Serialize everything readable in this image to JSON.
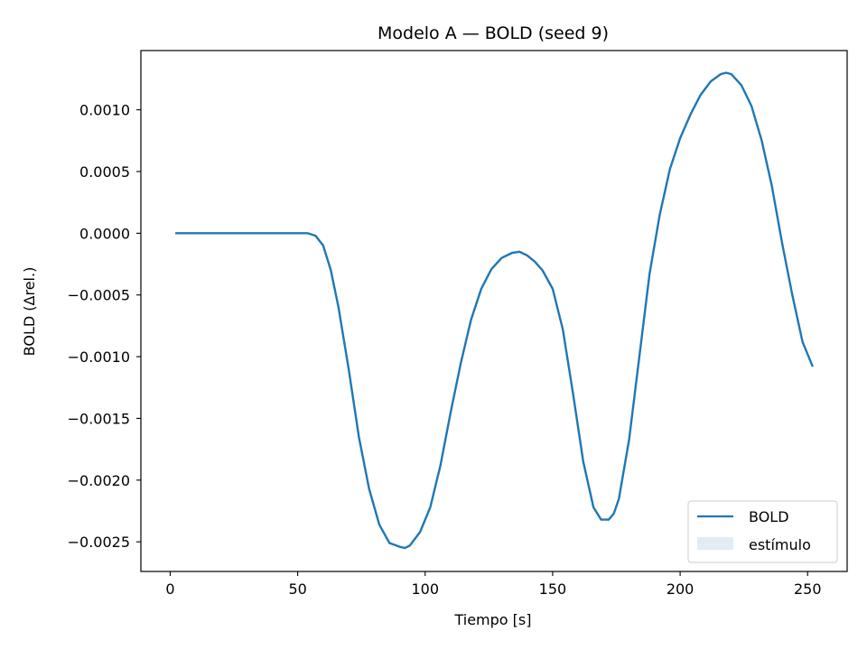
{
  "chart_data": {
    "type": "line",
    "title": "Modelo A — BOLD (seed 9)",
    "xlabel": "Tiempo [s]",
    "ylabel": "BOLD (Δrel.)",
    "xlim": [
      -11.5,
      265.5
    ],
    "ylim": [
      -0.00274,
      0.00148
    ],
    "xticks": [
      0,
      50,
      100,
      150,
      200,
      250
    ],
    "xtick_labels": [
      "0",
      "50",
      "100",
      "150",
      "200",
      "250"
    ],
    "yticks": [
      0.001,
      0.0005,
      0.0,
      -0.0005,
      -0.001,
      -0.0015,
      -0.002,
      -0.0025
    ],
    "ytick_labels": [
      "0.0010",
      "0.0005",
      "0.0000",
      "−0.0005",
      "−0.0010",
      "−0.0015",
      "−0.0020",
      "−0.0025"
    ],
    "grid": false,
    "legend_position": "lower-right",
    "series": [
      {
        "name": "BOLD",
        "color": "#1f77b4",
        "x": [
          2,
          10,
          20,
          30,
          40,
          50,
          54,
          57,
          60,
          63,
          66,
          70,
          74,
          78,
          82,
          86,
          90,
          92,
          94,
          98,
          102,
          106,
          110,
          114,
          118,
          122,
          126,
          130,
          134,
          137,
          140,
          143,
          146,
          150,
          154,
          158,
          162,
          166,
          169,
          172,
          174,
          176,
          180,
          184,
          188,
          192,
          196,
          200,
          204,
          208,
          212,
          216,
          218,
          220,
          224,
          228,
          232,
          236,
          240,
          244,
          248,
          252
        ],
        "y": [
          0.0,
          0.0,
          0.0,
          0.0,
          0.0,
          0.0,
          0.0,
          -2e-05,
          -0.0001,
          -0.0003,
          -0.0006,
          -0.0011,
          -0.00165,
          -0.00207,
          -0.00236,
          -0.00251,
          -0.00254,
          -0.00255,
          -0.00253,
          -0.00242,
          -0.00222,
          -0.00188,
          -0.00145,
          -0.00105,
          -0.0007,
          -0.00045,
          -0.00029,
          -0.0002,
          -0.00016,
          -0.00015,
          -0.00018,
          -0.00023,
          -0.0003,
          -0.00045,
          -0.00078,
          -0.0013,
          -0.00185,
          -0.00222,
          -0.00232,
          -0.00232,
          -0.00227,
          -0.00215,
          -0.00167,
          -0.001,
          -0.00033,
          0.00015,
          0.00052,
          0.00077,
          0.00096,
          0.00112,
          0.00123,
          0.00129,
          0.0013,
          0.00129,
          0.0012,
          0.00103,
          0.00075,
          0.00038,
          -8e-05,
          -0.0005,
          -0.00088,
          -0.00108
        ]
      }
    ],
    "legend": [
      {
        "label": "BOLD",
        "kind": "line",
        "color": "#1f77b4"
      },
      {
        "label": "estímulo",
        "kind": "patch",
        "color": "#d9e7f3"
      }
    ]
  }
}
